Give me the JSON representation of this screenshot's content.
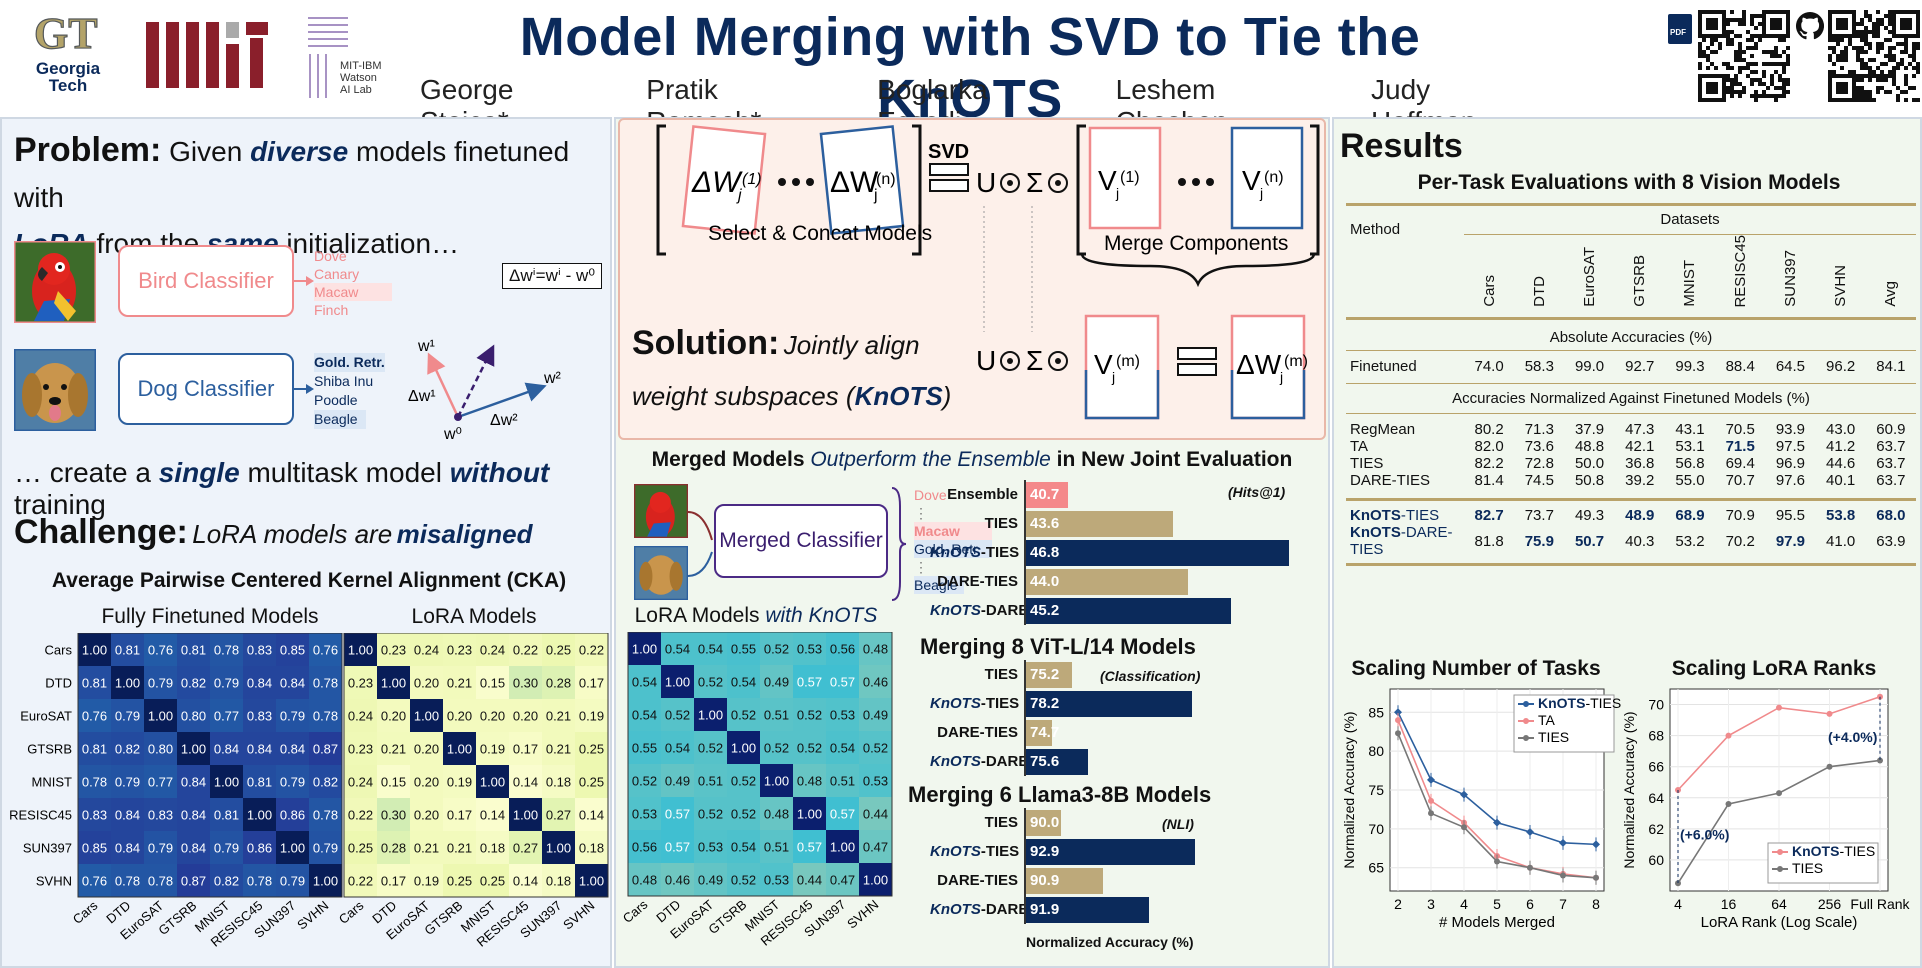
{
  "header": {
    "title": "Model Merging with SVD to Tie the KnOTS",
    "authors": [
      "George Stoica*",
      "Pratik Ramesh*",
      "Boglarka Ecsedi",
      "Leshem Choshen",
      "Judy Hoffman"
    ],
    "logos": {
      "gt_line1": "Georgia",
      "gt_line2": "Tech",
      "watson": [
        "MIT-IBM",
        "Watson",
        "AI Lab"
      ]
    },
    "pdf_label": "PDF"
  },
  "left": {
    "problem_head": "Problem:",
    "problem_parts": [
      "Given",
      "diverse",
      "models finetuned with",
      "LoRA",
      "from the",
      "same",
      "initialization…"
    ],
    "bird_classifier": "Bird Classifier",
    "dog_classifier": "Dog Classifier",
    "bird_classes": [
      "Dove",
      "Canary",
      "Macaw",
      "Finch"
    ],
    "dog_classes": [
      "Gold. Retr.",
      "Shiba Inu",
      "Poodle",
      "Beagle"
    ],
    "formula": "Δwⁱ=wⁱ - w⁰",
    "vec_labels": {
      "w1": "w¹",
      "w2": "w²",
      "w0": "w⁰",
      "dw1": "Δw¹",
      "dw2": "Δw²"
    },
    "create_parts": [
      "… create a",
      "single",
      "multitask model",
      "without",
      "training"
    ],
    "challenge_head": "Challenge:",
    "challenge_parts": [
      "LoRA models are",
      "misaligned"
    ],
    "cka_title": "Average Pairwise Centered Kernel Alignment (CKA)",
    "ff_title": "Fully Finetuned Models",
    "lora_title": "LoRA Models"
  },
  "datasets": [
    "Cars",
    "DTD",
    "EuroSAT",
    "GTSRB",
    "MNIST",
    "RESISC45",
    "SUN397",
    "SVHN"
  ],
  "matrices": {
    "ff": [
      [
        1.0,
        0.81,
        0.76,
        0.81,
        0.78,
        0.83,
        0.85,
        0.76
      ],
      [
        0.81,
        1.0,
        0.79,
        0.82,
        0.79,
        0.84,
        0.84,
        0.78
      ],
      [
        0.76,
        0.79,
        1.0,
        0.8,
        0.77,
        0.83,
        0.79,
        0.78
      ],
      [
        0.81,
        0.82,
        0.8,
        1.0,
        0.84,
        0.84,
        0.84,
        0.87
      ],
      [
        0.78,
        0.79,
        0.77,
        0.84,
        1.0,
        0.81,
        0.79,
        0.82
      ],
      [
        0.83,
        0.84,
        0.83,
        0.84,
        0.81,
        1.0,
        0.86,
        0.78
      ],
      [
        0.85,
        0.84,
        0.79,
        0.84,
        0.79,
        0.86,
        1.0,
        0.79
      ],
      [
        0.76,
        0.78,
        0.78,
        0.87,
        0.82,
        0.78,
        0.79,
        1.0
      ]
    ],
    "lora": [
      [
        1.0,
        0.23,
        0.24,
        0.23,
        0.24,
        0.22,
        0.25,
        0.22
      ],
      [
        0.23,
        1.0,
        0.2,
        0.21,
        0.15,
        0.3,
        0.28,
        0.17
      ],
      [
        0.24,
        0.2,
        1.0,
        0.2,
        0.2,
        0.2,
        0.21,
        0.19
      ],
      [
        0.23,
        0.21,
        0.2,
        1.0,
        0.19,
        0.17,
        0.21,
        0.25
      ],
      [
        0.24,
        0.15,
        0.2,
        0.19,
        1.0,
        0.14,
        0.18,
        0.25
      ],
      [
        0.22,
        0.3,
        0.2,
        0.17,
        0.14,
        1.0,
        0.27,
        0.14
      ],
      [
        0.25,
        0.28,
        0.21,
        0.21,
        0.18,
        0.27,
        1.0,
        0.18
      ],
      [
        0.22,
        0.17,
        0.19,
        0.25,
        0.25,
        0.14,
        0.18,
        1.0
      ]
    ],
    "knots": [
      [
        1.0,
        0.54,
        0.54,
        0.55,
        0.52,
        0.53,
        0.56,
        0.48
      ],
      [
        0.54,
        1.0,
        0.52,
        0.54,
        0.49,
        0.57,
        0.57,
        0.46
      ],
      [
        0.54,
        0.52,
        1.0,
        0.52,
        0.51,
        0.52,
        0.53,
        0.49
      ],
      [
        0.55,
        0.54,
        0.52,
        1.0,
        0.52,
        0.52,
        0.54,
        0.52
      ],
      [
        0.52,
        0.49,
        0.51,
        0.52,
        1.0,
        0.48,
        0.51,
        0.53
      ],
      [
        0.53,
        0.57,
        0.52,
        0.52,
        0.48,
        1.0,
        0.57,
        0.44
      ],
      [
        0.56,
        0.57,
        0.53,
        0.54,
        0.51,
        0.57,
        1.0,
        0.47
      ],
      [
        0.48,
        0.46,
        0.49,
        0.52,
        0.53,
        0.44,
        0.47,
        1.0
      ]
    ]
  },
  "mid": {
    "svd": "SVD",
    "select_concat": "Select & Concat Models",
    "merge_components": "Merge Components",
    "solution_head": "Solution:",
    "solution_parts": [
      "Jointly align",
      "weight subspaces (",
      "KnOTS",
      ")"
    ],
    "merged_title_parts": [
      "Merged Models",
      "Outperform the Ensemble",
      "in New Joint Evaluation"
    ],
    "merged_classifier": "Merged Classifier",
    "merged_classes": [
      "Dove",
      "Macaw",
      "Gold. Retr.",
      "Beagle"
    ],
    "knots_cka_title_parts": [
      "LoRA Models",
      "with KnOTS"
    ],
    "hits": "(Hits@1)",
    "classification": "(Classification)",
    "nli": "(NLI)",
    "vit_title": "Merging 8 ViT-L/14 Models",
    "llama_title": "Merging 6 Llama3-8B Models",
    "norm_acc": "Normalized Accuracy (%)"
  },
  "chart_data": [
    {
      "type": "bar",
      "title": "Merged Models Outperform the Ensemble in New Joint Evaluation",
      "categories": [
        "Ensemble",
        "TIES",
        "KnOTS-TIES",
        "DARE-TIES",
        "KnOTS-DARE-TIES"
      ],
      "values": [
        40.7,
        43.6,
        46.8,
        44.0,
        45.2
      ],
      "colors": [
        "#f4898a",
        "#bda97a",
        "#0b2a5b",
        "#bda97a",
        "#0b2a5b"
      ]
    },
    {
      "type": "bar",
      "title": "Merging 8 ViT-L/14 Models",
      "categories": [
        "TIES",
        "KnOTS-TIES",
        "DARE-TIES",
        "KnOTS-DARE-TIES"
      ],
      "values": [
        75.2,
        78.2,
        74.7,
        75.6
      ],
      "colors": [
        "#bda97a",
        "#0b2a5b",
        "#bda97a",
        "#0b2a5b"
      ]
    },
    {
      "type": "bar",
      "title": "Merging 6 Llama3-8B Models",
      "xlabel": "Normalized Accuracy (%)",
      "categories": [
        "TIES",
        "KnOTS-TIES",
        "DARE-TIES",
        "KnOTS-DARE-TIES"
      ],
      "values": [
        90.0,
        92.9,
        90.9,
        91.9
      ],
      "colors": [
        "#bda97a",
        "#0b2a5b",
        "#bda97a",
        "#0b2a5b"
      ]
    },
    {
      "type": "line",
      "title": "Scaling Number of Tasks",
      "xlabel": "# Models Merged",
      "ylabel": "Normalized Accuracy (%)",
      "x": [
        2,
        3,
        4,
        5,
        6,
        7,
        8
      ],
      "ylim": [
        62,
        88
      ],
      "yticks": [
        65,
        70,
        75,
        80,
        85
      ],
      "legend": "top-right",
      "series": [
        {
          "name": "KnOTS-TIES",
          "color": "#2c5f9e",
          "values": [
            85.0,
            76.3,
            74.4,
            70.8,
            69.6,
            68.2,
            68.0
          ]
        },
        {
          "name": "TA",
          "color": "#f08a8c",
          "values": [
            84.0,
            73.6,
            70.8,
            66.5,
            65.0,
            64.2,
            63.7
          ]
        },
        {
          "name": "TIES",
          "color": "#777777",
          "values": [
            82.3,
            72.0,
            70.2,
            65.8,
            65.0,
            64.0,
            63.7
          ]
        }
      ]
    },
    {
      "type": "line",
      "title": "Scaling LoRA Ranks",
      "xlabel": "LoRA Rank (Log Scale)",
      "ylabel": "Normalized Accuracy (%)",
      "x": [
        "4",
        "16",
        "64",
        "256",
        "Full Rank"
      ],
      "ylim": [
        58,
        71
      ],
      "yticks": [
        60,
        62,
        64,
        66,
        68,
        70
      ],
      "legend": "bottom-right",
      "annotations": [
        "(+6.0%)",
        "(+4.0%)"
      ],
      "series": [
        {
          "name": "KnOTS-TIES",
          "color": "#f08a8c",
          "values": [
            64.5,
            68.0,
            69.8,
            69.4,
            70.5
          ]
        },
        {
          "name": "TIES",
          "color": "#777777",
          "values": [
            58.5,
            63.6,
            64.3,
            66.0,
            66.4
          ]
        }
      ]
    }
  ],
  "results": {
    "title": "Results",
    "table_title": "Per-Task Evaluations with 8 Vision Models",
    "method": "Method",
    "datasets_label": "Datasets",
    "columns": [
      "Cars",
      "DTD",
      "EuroSAT",
      "GTSRB",
      "MNIST",
      "RESISC45",
      "SUN397",
      "SVHN",
      "Avg"
    ],
    "abs_label": "Absolute Accuracies (%)",
    "norm_label": "Accuracies Normalized Against Finetuned Models (%)",
    "finetuned": {
      "name": "Finetuned",
      "vals": [
        "74.0",
        "58.3",
        "99.0",
        "92.7",
        "99.3",
        "88.4",
        "64.5",
        "96.2",
        "84.1"
      ]
    },
    "baselines": [
      {
        "name": "RegMean",
        "vals": [
          "80.2",
          "71.3",
          "37.9",
          "47.3",
          "43.1",
          "70.5",
          "93.9",
          "43.0",
          "60.9"
        ]
      },
      {
        "name": "TA",
        "vals": [
          "82.0",
          "73.6",
          "48.8",
          "42.1",
          "53.1",
          "71.5",
          "97.5",
          "41.2",
          "63.7"
        ]
      },
      {
        "name": "TIES",
        "vals": [
          "82.2",
          "72.8",
          "50.0",
          "36.8",
          "56.8",
          "69.4",
          "96.9",
          "44.6",
          "63.7"
        ]
      },
      {
        "name": "DARE-TIES",
        "vals": [
          "81.4",
          "74.5",
          "50.8",
          "39.2",
          "55.0",
          "70.7",
          "97.6",
          "40.1",
          "63.7"
        ]
      }
    ],
    "ours": [
      {
        "name_b": "KnOTS",
        "name": "-TIES",
        "vals": [
          "82.7",
          "73.7",
          "49.3",
          "48.9",
          "68.9",
          "70.9",
          "95.5",
          "53.8",
          "68.0"
        ]
      },
      {
        "name_b": "KnOTS",
        "name": "-DARE-TIES",
        "vals": [
          "81.8",
          "75.9",
          "50.7",
          "40.3",
          "53.2",
          "70.2",
          "97.9",
          "41.0",
          "63.9"
        ]
      }
    ]
  }
}
